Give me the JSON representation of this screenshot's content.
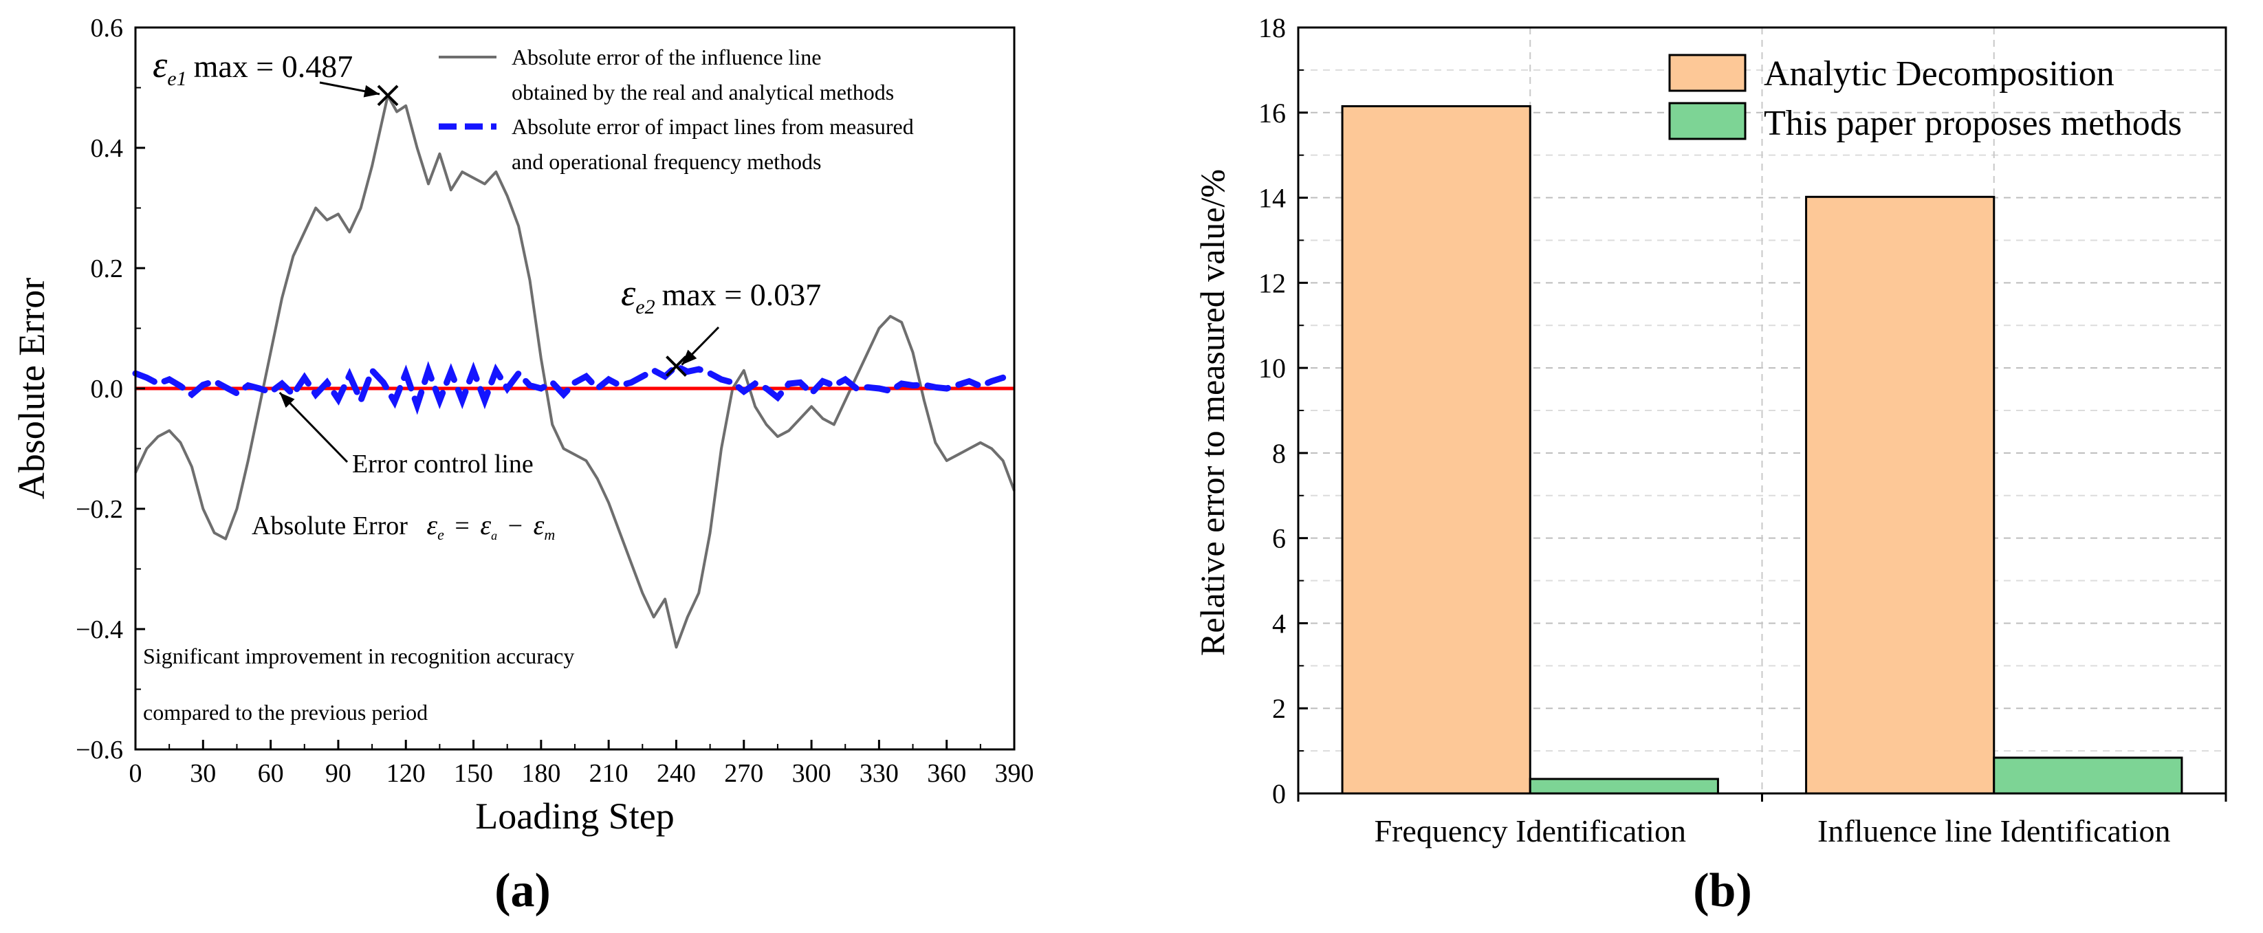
{
  "chart_data": [
    {
      "panel_label": "(a)",
      "type": "line",
      "xlabel": "Loading Step",
      "ylabel": "Absolute Error",
      "xlim": [
        0,
        390
      ],
      "ylim": [
        -0.6,
        0.6
      ],
      "xticks": [
        0,
        30,
        60,
        90,
        120,
        150,
        180,
        210,
        240,
        270,
        300,
        330,
        360,
        390
      ],
      "yticks": [
        -0.6,
        -0.4,
        -0.2,
        0.0,
        0.2,
        0.4,
        0.6
      ],
      "ytick_labels": [
        "−0.6",
        "−0.4",
        "−0.2",
        "0.0",
        "0.2",
        "0.4",
        "0.6"
      ],
      "series": [
        {
          "name": "Absolute error of the influence line obtained by the real and analytical methods",
          "legend_lines": [
            "Absolute error of the influence line",
            "obtained by the real and analytical methods"
          ],
          "color": "#6e6e6e",
          "style": "solid",
          "x": [
            0,
            5,
            10,
            15,
            20,
            25,
            30,
            35,
            40,
            45,
            50,
            55,
            60,
            65,
            70,
            75,
            80,
            85,
            90,
            95,
            100,
            105,
            108,
            112,
            116,
            120,
            125,
            130,
            135,
            140,
            145,
            150,
            155,
            160,
            165,
            170,
            175,
            180,
            185,
            190,
            195,
            200,
            205,
            210,
            215,
            220,
            225,
            230,
            235,
            240,
            245,
            250,
            255,
            260,
            265,
            270,
            275,
            280,
            285,
            290,
            295,
            300,
            305,
            310,
            315,
            320,
            325,
            330,
            335,
            340,
            345,
            350,
            355,
            360,
            365,
            370,
            375,
            380,
            385,
            390
          ],
          "values": [
            -0.14,
            -0.1,
            -0.08,
            -0.07,
            -0.09,
            -0.13,
            -0.2,
            -0.24,
            -0.25,
            -0.2,
            -0.12,
            -0.03,
            0.06,
            0.15,
            0.22,
            0.26,
            0.3,
            0.28,
            0.29,
            0.26,
            0.3,
            0.37,
            0.42,
            0.487,
            0.46,
            0.47,
            0.4,
            0.34,
            0.39,
            0.33,
            0.36,
            0.35,
            0.34,
            0.36,
            0.32,
            0.27,
            0.18,
            0.05,
            -0.06,
            -0.1,
            -0.11,
            -0.12,
            -0.15,
            -0.19,
            -0.24,
            -0.29,
            -0.34,
            -0.38,
            -0.35,
            -0.43,
            -0.38,
            -0.34,
            -0.24,
            -0.1,
            0.0,
            0.03,
            -0.03,
            -0.06,
            -0.08,
            -0.07,
            -0.05,
            -0.03,
            -0.05,
            -0.06,
            -0.02,
            0.02,
            0.06,
            0.1,
            0.12,
            0.11,
            0.06,
            -0.02,
            -0.09,
            -0.12,
            -0.11,
            -0.1,
            -0.09,
            -0.1,
            -0.12,
            -0.17
          ]
        },
        {
          "name": "Absolute error of impact lines from measured and operational frequency methods",
          "legend_lines": [
            "Absolute error of impact lines from measured",
            "and operational frequency methods"
          ],
          "color": "#1414ff",
          "style": "dashed",
          "x": [
            0,
            5,
            10,
            15,
            20,
            25,
            30,
            35,
            40,
            45,
            50,
            55,
            60,
            65,
            70,
            75,
            80,
            85,
            90,
            95,
            100,
            105,
            110,
            115,
            120,
            125,
            130,
            135,
            140,
            145,
            150,
            155,
            160,
            165,
            170,
            175,
            180,
            185,
            190,
            195,
            200,
            205,
            210,
            215,
            220,
            225,
            230,
            235,
            240,
            245,
            250,
            255,
            260,
            265,
            270,
            275,
            280,
            285,
            290,
            295,
            300,
            305,
            310,
            315,
            320,
            325,
            330,
            335,
            340,
            345,
            350,
            355,
            360,
            365,
            370,
            375,
            380,
            385
          ],
          "values": [
            0.025,
            0.018,
            0.008,
            0.015,
            0.004,
            -0.01,
            0.006,
            0.012,
            0.002,
            -0.008,
            0.005,
            0.0,
            -0.006,
            0.008,
            -0.01,
            0.018,
            -0.01,
            0.01,
            -0.018,
            0.022,
            -0.02,
            0.03,
            0.01,
            -0.022,
            0.025,
            -0.028,
            0.03,
            -0.02,
            0.028,
            -0.02,
            0.03,
            -0.02,
            0.03,
            0.0,
            0.025,
            0.005,
            0.0,
            0.01,
            -0.01,
            0.01,
            0.02,
            0.0,
            0.015,
            0.005,
            0.01,
            0.02,
            0.03,
            0.02,
            0.037,
            0.028,
            0.032,
            0.025,
            0.015,
            0.01,
            -0.005,
            0.008,
            0.0,
            -0.015,
            0.008,
            0.01,
            -0.008,
            0.012,
            0.005,
            0.015,
            0.0,
            0.002,
            0.0,
            -0.004,
            0.008,
            0.005,
            0.006,
            0.002,
            0.0,
            0.006,
            0.012,
            0.004,
            0.012,
            0.018
          ]
        },
        {
          "name": "Error control line",
          "color": "#ff0000",
          "style": "solid",
          "x": [
            0,
            390
          ],
          "values": [
            0,
            0
          ]
        }
      ],
      "annotations": {
        "emax1_label": "max = 0.487",
        "emax1_symbol": "ε",
        "emax1_sub": "e1",
        "emax1_point": [
          112,
          0.487
        ],
        "emax2_label": "max = 0.037",
        "emax2_symbol": "ε",
        "emax2_sub": "e2",
        "emax2_point": [
          240,
          0.037
        ],
        "control_line_label": "Error control line",
        "formula_prefix": "Absolute Error",
        "formula_e": "ε",
        "formula_sub_e": "e",
        "formula_eq": "=",
        "formula_a": "ε",
        "formula_sub_a": "a",
        "formula_minus": "−",
        "formula_m": "ε",
        "formula_sub_m": "m",
        "note_line1": "Significant improvement in recognition accuracy",
        "note_line2": "compared to the previous period"
      }
    },
    {
      "panel_label": "(b)",
      "type": "bar",
      "xlabel": "",
      "ylabel": "Relative error to measured value/%",
      "ylim": [
        0,
        18
      ],
      "yticks": [
        0,
        2,
        4,
        6,
        8,
        10,
        12,
        14,
        16,
        18
      ],
      "categories": [
        "Frequency Identification",
        "Influence line Identification"
      ],
      "series": [
        {
          "name": "Analytic Decomposition",
          "color": "#fdc897",
          "values": [
            16.15,
            14.02
          ]
        },
        {
          "name": "This paper proposes methods",
          "color": "#7dd495",
          "values": [
            0.34,
            0.84
          ]
        }
      ]
    }
  ]
}
